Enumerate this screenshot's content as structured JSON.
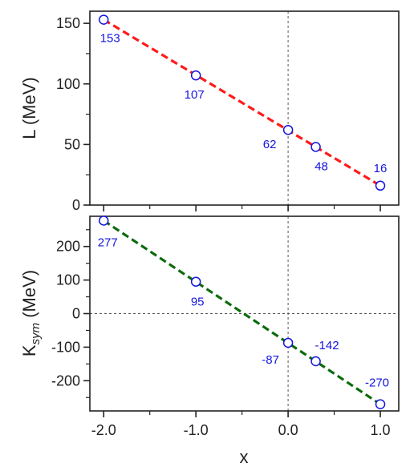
{
  "colors": {
    "marker": "#1414e0",
    "label": "#1414e0",
    "fit_top": "#ff1a1a",
    "fit_bottom": "#0b6b0b",
    "axis": "#222222",
    "refline": "#555555"
  },
  "chart_data": [
    {
      "type": "scatter",
      "title": "",
      "xlabel": "x",
      "ylabel": "L (MeV)",
      "xlim": [
        -2.15,
        1.2
      ],
      "ylim": [
        0,
        160
      ],
      "xticks": [
        -2.0,
        -1.0,
        0.0,
        1.0
      ],
      "xminor": [
        -1.5,
        -0.5,
        0.5
      ],
      "yticks": [
        0,
        50,
        100,
        150
      ],
      "ytick_labels": [
        "0",
        "50",
        "100",
        "150"
      ],
      "yminor": [
        25,
        75,
        125
      ],
      "grid": false,
      "vline_x": 0,
      "hline_y": null,
      "fit_line": {
        "x": [
          -2.0,
          1.0
        ],
        "y": [
          153,
          16
        ],
        "style": "dashed",
        "color": "red"
      },
      "points": [
        {
          "x": -2.0,
          "y": 153,
          "label": "153"
        },
        {
          "x": -1.0,
          "y": 107,
          "label": "107"
        },
        {
          "x": 0.0,
          "y": 62,
          "label": "62"
        },
        {
          "x": 0.3,
          "y": 48,
          "label": "48"
        },
        {
          "x": 1.0,
          "y": 16,
          "label": "16"
        }
      ]
    },
    {
      "type": "scatter",
      "title": "",
      "xlabel": "x",
      "ylabel": "K",
      "ylabel_sub": "sym",
      "ylabel_unit": " (MeV)",
      "xlim": [
        -2.15,
        1.2
      ],
      "ylim": [
        -290,
        290
      ],
      "xticks": [
        -2.0,
        -1.0,
        0.0,
        1.0
      ],
      "xtick_labels": [
        "-2.0",
        "-1.0",
        "0.0",
        "1.0"
      ],
      "xminor": [
        -1.5,
        -0.5,
        0.5
      ],
      "yticks": [
        -200,
        -100,
        0,
        100,
        200
      ],
      "ytick_labels": [
        "-200",
        "-100",
        "0",
        "100",
        "200"
      ],
      "yminor": [
        -250,
        -150,
        -50,
        50,
        150,
        250
      ],
      "grid": false,
      "vline_x": 0,
      "hline_y": 0,
      "fit_line": {
        "x": [
          -2.0,
          1.0
        ],
        "y": [
          277,
          -270
        ],
        "style": "dashed",
        "color": "green"
      },
      "points": [
        {
          "x": -2.0,
          "y": 277,
          "label": "277"
        },
        {
          "x": -1.0,
          "y": 95,
          "label": "95"
        },
        {
          "x": 0.0,
          "y": -87,
          "label": "-87"
        },
        {
          "x": 0.3,
          "y": -142,
          "label": "-142"
        },
        {
          "x": 1.0,
          "y": -270,
          "label": "-270"
        }
      ]
    }
  ]
}
